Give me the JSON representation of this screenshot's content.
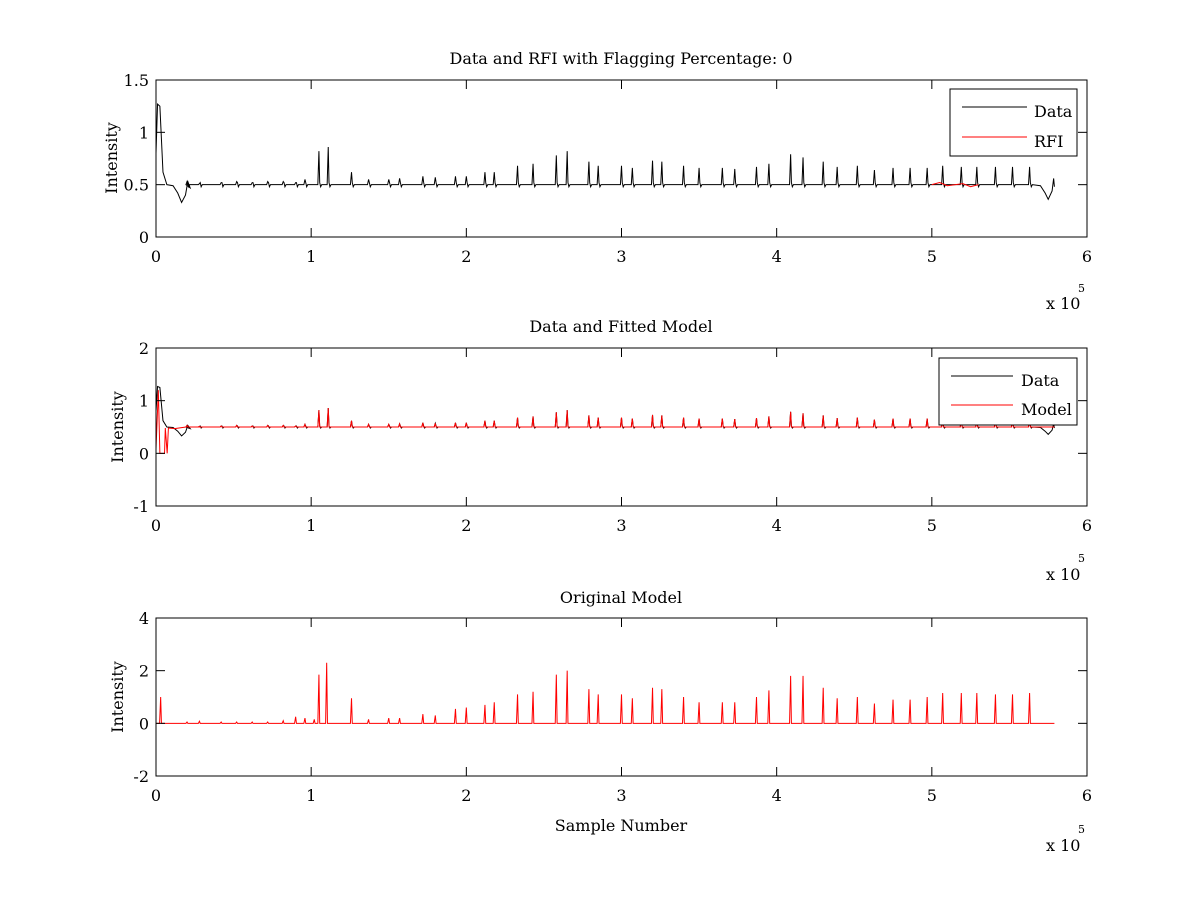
{
  "colors": {
    "data": "#000000",
    "rfi": "#ff0000",
    "model": "#ff0000",
    "background": "#ffffff"
  },
  "chart_data": [
    {
      "type": "line",
      "title": "Data and RFI with Flagging Percentage: 0",
      "xlabel": "",
      "ylabel": "Intensity",
      "xlim": [
        0,
        600000
      ],
      "ylim": [
        0,
        1.5
      ],
      "x_ticks": [
        "0",
        "1",
        "2",
        "3",
        "4",
        "5",
        "6"
      ],
      "y_ticks": [
        "0",
        "0.5",
        "1",
        "1.5"
      ],
      "y_tick_values": [
        0,
        0.5,
        1,
        1.5
      ],
      "x_exponent": {
        "prefix": "x 10",
        "power": "5"
      },
      "legend_position": "top-right",
      "baseline": 0.5,
      "series": [
        {
          "name": "Data",
          "color": "#000000",
          "kind": "data"
        },
        {
          "name": "RFI",
          "color": "#ff0000",
          "kind": "rfi"
        }
      ],
      "peaks": [
        [
          20000,
          0.53
        ],
        [
          28000,
          0.51
        ],
        [
          42000,
          0.52
        ],
        [
          52000,
          0.53
        ],
        [
          62000,
          0.52
        ],
        [
          72000,
          0.53
        ],
        [
          82000,
          0.53
        ],
        [
          90000,
          0.52
        ],
        [
          96000,
          0.55
        ],
        [
          105000,
          0.82
        ],
        [
          111000,
          0.86
        ],
        [
          126000,
          0.62
        ],
        [
          137000,
          0.55
        ],
        [
          150000,
          0.55
        ],
        [
          157000,
          0.56
        ],
        [
          172000,
          0.58
        ],
        [
          180000,
          0.57
        ],
        [
          193000,
          0.58
        ],
        [
          200000,
          0.58
        ],
        [
          212000,
          0.62
        ],
        [
          218000,
          0.62
        ],
        [
          233000,
          0.68
        ],
        [
          243000,
          0.7
        ],
        [
          258000,
          0.78
        ],
        [
          265000,
          0.82
        ],
        [
          279000,
          0.72
        ],
        [
          285000,
          0.68
        ],
        [
          300000,
          0.68
        ],
        [
          307000,
          0.66
        ],
        [
          320000,
          0.73
        ],
        [
          326000,
          0.72
        ],
        [
          340000,
          0.68
        ],
        [
          350000,
          0.66
        ],
        [
          365000,
          0.66
        ],
        [
          373000,
          0.65
        ],
        [
          387000,
          0.67
        ],
        [
          395000,
          0.7
        ],
        [
          409000,
          0.79
        ],
        [
          417000,
          0.76
        ],
        [
          430000,
          0.72
        ],
        [
          439000,
          0.67
        ],
        [
          452000,
          0.68
        ],
        [
          463000,
          0.64
        ],
        [
          475000,
          0.66
        ],
        [
          486000,
          0.66
        ],
        [
          497000,
          0.66
        ],
        [
          507000,
          0.68
        ],
        [
          519000,
          0.67
        ],
        [
          529000,
          0.67
        ],
        [
          541000,
          0.67
        ],
        [
          552000,
          0.67
        ],
        [
          563000,
          0.67
        ]
      ],
      "edges": {
        "start_peak": 1.27,
        "start_dip": 0.33,
        "end_dip": 0.36,
        "end_x": 579000
      }
    },
    {
      "type": "line",
      "title": "Data and Fitted Model",
      "xlabel": "",
      "ylabel": "Intensity",
      "xlim": [
        0,
        600000
      ],
      "ylim": [
        -1,
        2
      ],
      "x_ticks": [
        "0",
        "1",
        "2",
        "3",
        "4",
        "5",
        "6"
      ],
      "y_ticks": [
        "-1",
        "0",
        "1",
        "2"
      ],
      "y_tick_values": [
        -1,
        0,
        1,
        2
      ],
      "x_exponent": {
        "prefix": "x 10",
        "power": "5"
      },
      "legend_position": "top-right",
      "baseline": 0.5,
      "series": [
        {
          "name": "Data",
          "color": "#000000",
          "kind": "data"
        },
        {
          "name": "Model",
          "color": "#ff0000",
          "kind": "model"
        }
      ],
      "peaks": [
        [
          20000,
          0.53
        ],
        [
          28000,
          0.51
        ],
        [
          42000,
          0.52
        ],
        [
          52000,
          0.53
        ],
        [
          62000,
          0.52
        ],
        [
          72000,
          0.53
        ],
        [
          82000,
          0.53
        ],
        [
          90000,
          0.52
        ],
        [
          96000,
          0.55
        ],
        [
          105000,
          0.82
        ],
        [
          111000,
          0.86
        ],
        [
          126000,
          0.62
        ],
        [
          137000,
          0.55
        ],
        [
          150000,
          0.55
        ],
        [
          157000,
          0.56
        ],
        [
          172000,
          0.58
        ],
        [
          180000,
          0.57
        ],
        [
          193000,
          0.58
        ],
        [
          200000,
          0.58
        ],
        [
          212000,
          0.62
        ],
        [
          218000,
          0.62
        ],
        [
          233000,
          0.68
        ],
        [
          243000,
          0.7
        ],
        [
          258000,
          0.78
        ],
        [
          265000,
          0.82
        ],
        [
          279000,
          0.72
        ],
        [
          285000,
          0.68
        ],
        [
          300000,
          0.68
        ],
        [
          307000,
          0.66
        ],
        [
          320000,
          0.73
        ],
        [
          326000,
          0.72
        ],
        [
          340000,
          0.68
        ],
        [
          350000,
          0.66
        ],
        [
          365000,
          0.66
        ],
        [
          373000,
          0.65
        ],
        [
          387000,
          0.67
        ],
        [
          395000,
          0.7
        ],
        [
          409000,
          0.79
        ],
        [
          417000,
          0.76
        ],
        [
          430000,
          0.72
        ],
        [
          439000,
          0.67
        ],
        [
          452000,
          0.68
        ],
        [
          463000,
          0.64
        ],
        [
          475000,
          0.66
        ],
        [
          486000,
          0.66
        ],
        [
          497000,
          0.66
        ],
        [
          507000,
          0.68
        ],
        [
          519000,
          0.67
        ],
        [
          529000,
          0.67
        ],
        [
          541000,
          0.67
        ],
        [
          552000,
          0.67
        ],
        [
          563000,
          0.67
        ]
      ],
      "edges": {
        "start_peak": 1.27,
        "start_dip": 0.33,
        "end_dip": 0.36,
        "end_x": 579000,
        "model_dip": 0.0
      }
    },
    {
      "type": "line",
      "title": "Original Model",
      "xlabel": "Sample Number",
      "ylabel": "Intensity",
      "xlim": [
        0,
        600000
      ],
      "ylim": [
        -2,
        4
      ],
      "x_ticks": [
        "0",
        "1",
        "2",
        "3",
        "4",
        "5",
        "6"
      ],
      "y_ticks": [
        "-2",
        "0",
        "2",
        "4"
      ],
      "y_tick_values": [
        -2,
        0,
        2,
        4
      ],
      "x_exponent": {
        "prefix": "x 10",
        "power": "5"
      },
      "legend_position": "none",
      "baseline": 0.0,
      "series": [
        {
          "name": "",
          "color": "#ff0000",
          "kind": "model"
        }
      ],
      "peaks": [
        [
          3000,
          1.0
        ],
        [
          20000,
          0.05
        ],
        [
          28000,
          0.08
        ],
        [
          42000,
          0.05
        ],
        [
          52000,
          0.05
        ],
        [
          62000,
          0.05
        ],
        [
          72000,
          0.05
        ],
        [
          82000,
          0.1
        ],
        [
          90000,
          0.25
        ],
        [
          96000,
          0.2
        ],
        [
          102000,
          0.15
        ],
        [
          105000,
          1.85
        ],
        [
          110000,
          2.3
        ],
        [
          126000,
          0.95
        ],
        [
          137000,
          0.15
        ],
        [
          150000,
          0.2
        ],
        [
          157000,
          0.2
        ],
        [
          172000,
          0.35
        ],
        [
          180000,
          0.3
        ],
        [
          193000,
          0.55
        ],
        [
          200000,
          0.6
        ],
        [
          212000,
          0.7
        ],
        [
          218000,
          0.8
        ],
        [
          233000,
          1.1
        ],
        [
          243000,
          1.2
        ],
        [
          258000,
          1.85
        ],
        [
          265000,
          2.0
        ],
        [
          279000,
          1.3
        ],
        [
          285000,
          1.1
        ],
        [
          300000,
          1.1
        ],
        [
          307000,
          0.95
        ],
        [
          320000,
          1.35
        ],
        [
          326000,
          1.3
        ],
        [
          340000,
          1.0
        ],
        [
          350000,
          0.8
        ],
        [
          365000,
          0.8
        ],
        [
          373000,
          0.8
        ],
        [
          387000,
          1.0
        ],
        [
          395000,
          1.25
        ],
        [
          409000,
          1.8
        ],
        [
          417000,
          1.8
        ],
        [
          430000,
          1.35
        ],
        [
          439000,
          0.95
        ],
        [
          452000,
          1.0
        ],
        [
          463000,
          0.75
        ],
        [
          475000,
          0.9
        ],
        [
          486000,
          0.9
        ],
        [
          497000,
          1.0
        ],
        [
          507000,
          1.15
        ],
        [
          519000,
          1.15
        ],
        [
          529000,
          1.15
        ],
        [
          541000,
          1.1
        ],
        [
          552000,
          1.1
        ],
        [
          563000,
          1.15
        ]
      ],
      "edges": {
        "end_x": 579000
      }
    }
  ]
}
